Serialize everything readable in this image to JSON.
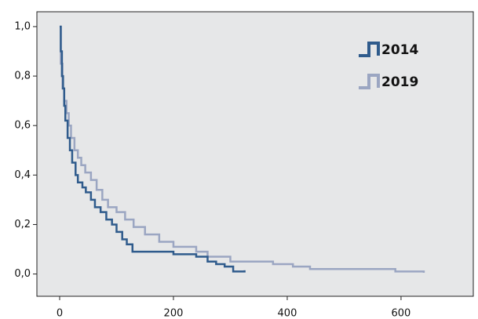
{
  "chart_data": {
    "type": "step",
    "xlim": [
      -40,
      727
    ],
    "ylim": [
      -0.09,
      1.06
    ],
    "xticks": [
      0,
      200,
      400,
      600
    ],
    "yticks": [
      {
        "value": 0,
        "label": "0,0"
      },
      {
        "value": 0.2,
        "label": "0,2"
      },
      {
        "value": 0.4,
        "label": "0,4"
      },
      {
        "value": 0.6,
        "label": "0,6"
      },
      {
        "value": 0.8,
        "label": "0,8"
      },
      {
        "value": 1,
        "label": "1,0"
      }
    ],
    "legend": "upper right",
    "series": [
      {
        "name": "2014",
        "color": "#2f5b8c",
        "x": [
          0,
          2,
          4,
          6,
          8,
          10,
          14,
          18,
          22,
          28,
          32,
          40,
          46,
          55,
          62,
          72,
          82,
          92,
          100,
          110,
          118,
          128,
          160,
          200,
          240,
          260,
          275,
          290,
          305,
          325
        ],
        "values": [
          1.0,
          0.9,
          0.8,
          0.75,
          0.68,
          0.62,
          0.55,
          0.5,
          0.45,
          0.4,
          0.37,
          0.35,
          0.33,
          0.3,
          0.27,
          0.25,
          0.22,
          0.2,
          0.17,
          0.14,
          0.12,
          0.09,
          0.09,
          0.08,
          0.07,
          0.05,
          0.04,
          0.03,
          0.01,
          0.015
        ]
      },
      {
        "name": "2019",
        "color": "#9ba6c2",
        "x": [
          0,
          2,
          5,
          8,
          12,
          16,
          20,
          26,
          32,
          38,
          45,
          55,
          65,
          75,
          85,
          100,
          115,
          130,
          150,
          175,
          200,
          240,
          260,
          300,
          375,
          410,
          440,
          590,
          640
        ],
        "values": [
          1.0,
          0.85,
          0.75,
          0.7,
          0.65,
          0.6,
          0.55,
          0.5,
          0.47,
          0.44,
          0.41,
          0.38,
          0.34,
          0.3,
          0.27,
          0.25,
          0.22,
          0.19,
          0.16,
          0.13,
          0.11,
          0.09,
          0.07,
          0.05,
          0.04,
          0.03,
          0.02,
          0.01,
          0.005
        ]
      }
    ]
  }
}
